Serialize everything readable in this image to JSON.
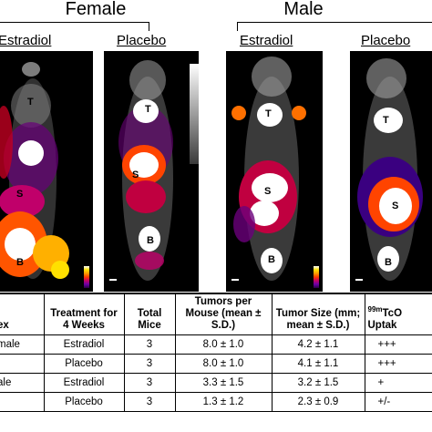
{
  "groups": {
    "female": "Female",
    "male": "Male"
  },
  "columns": [
    {
      "label": "Estradiol"
    },
    {
      "label": "Placebo"
    },
    {
      "label": "Estradiol"
    },
    {
      "label": "Placebo"
    }
  ],
  "organ_labels": {
    "t": "T",
    "s": "S",
    "b": "B"
  },
  "table": {
    "headers": {
      "sex": "ex",
      "treatment": "Treatment for 4 Weeks",
      "total": "Total Mice",
      "tumors": "Tumors per Mouse (mean ± S.D.)",
      "size": "Tumor Size (mm; mean ± S.D.)",
      "uptake_sup": "99m",
      "uptake": "TcO",
      "uptake2": "Uptak"
    },
    "rows": [
      {
        "sex": "male",
        "treatment": "Estradiol",
        "total": "3",
        "tumors": "8.0 ± 1.0",
        "size": "4.2 ± 1.1",
        "uptake": "+++"
      },
      {
        "sex": "",
        "treatment": "Placebo",
        "total": "3",
        "tumors": "8.0 ± 1.0",
        "size": "4.1 ± 1.1",
        "uptake": "+++"
      },
      {
        "sex": "ale",
        "treatment": "Estradiol",
        "total": "3",
        "tumors": "3.3 ± 1.5",
        "size": "3.2 ± 1.5",
        "uptake": "+"
      },
      {
        "sex": "",
        "treatment": "Placebo",
        "total": "3",
        "tumors": "1.3 ± 1.2",
        "size": "2.3 ± 0.9",
        "uptake": "+/-"
      }
    ]
  }
}
